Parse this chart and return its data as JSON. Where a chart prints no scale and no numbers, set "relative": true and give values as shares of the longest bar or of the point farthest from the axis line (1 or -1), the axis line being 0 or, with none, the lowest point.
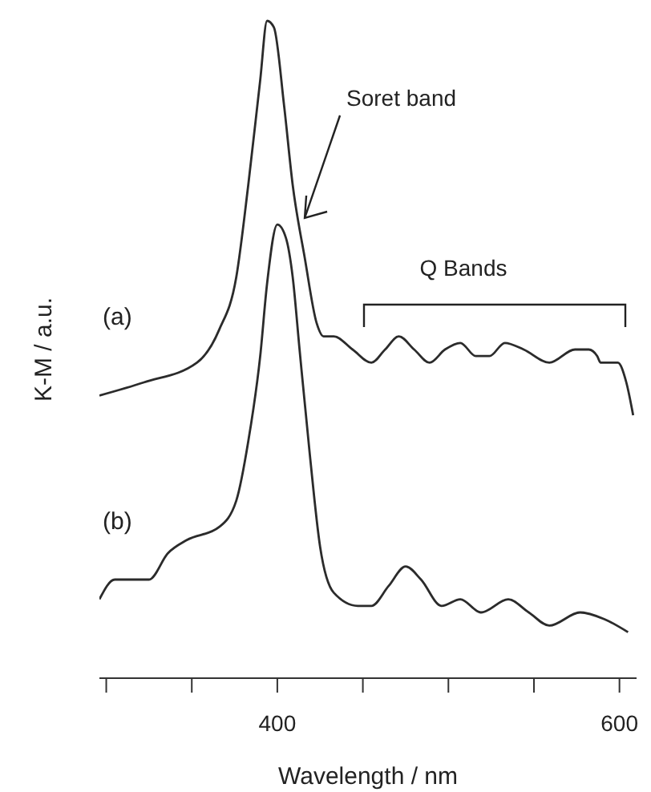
{
  "chart_data": {
    "type": "line",
    "relative": true,
    "xlabel": "Wavelength / nm",
    "ylabel": "K-M / a.u.",
    "xlim": [
      296,
      610
    ],
    "xticks": [
      {
        "value": 300,
        "label": null
      },
      {
        "value": 350,
        "label": null
      },
      400,
      {
        "value": 450,
        "label": null
      },
      {
        "value": 500,
        "label": null
      },
      {
        "value": 550,
        "label": null
      },
      600
    ],
    "marker": "none",
    "line_style": "solid",
    "annotations": [
      {
        "text": "Soret band",
        "x": 416,
        "y": 0.7
      },
      "Q Bands"
    ],
    "series": [
      {
        "name": "(a)",
        "color": "#2b2b2b",
        "x": [
          296,
          322,
          353,
          366,
          376,
          383,
          390,
          394,
          398,
          404,
          409,
          416,
          423,
          427,
          433,
          444,
          455,
          463,
          471,
          480,
          489,
          498,
          507,
          516,
          524,
          533,
          544,
          559,
          574,
          582,
          587,
          589,
          599,
          604,
          608
        ],
        "values": [
          0.43,
          0.45,
          0.48,
          0.53,
          0.61,
          0.75,
          0.91,
          1,
          0.99,
          0.87,
          0.75,
          0.64,
          0.54,
          0.52,
          0.52,
          0.5,
          0.48,
          0.5,
          0.52,
          0.5,
          0.48,
          0.5,
          0.51,
          0.49,
          0.49,
          0.51,
          0.5,
          0.48,
          0.5,
          0.5,
          0.49,
          0.48,
          0.48,
          0.45,
          0.4
        ]
      },
      {
        "name": "(b)",
        "color": "#2b2b2b",
        "x": [
          296,
          305,
          315,
          325,
          336,
          347,
          366,
          376,
          383,
          390,
          394,
          400,
          405,
          409,
          413,
          419,
          425,
          433,
          447,
          455,
          465,
          475,
          484,
          496,
          507,
          519,
          535,
          547,
          559,
          577,
          591,
          605
        ],
        "values": [
          0.12,
          0.15,
          0.15,
          0.15,
          0.19,
          0.21,
          0.23,
          0.27,
          0.36,
          0.49,
          0.6,
          0.69,
          0.67,
          0.61,
          0.5,
          0.34,
          0.2,
          0.13,
          0.11,
          0.11,
          0.14,
          0.17,
          0.15,
          0.11,
          0.12,
          0.1,
          0.12,
          0.1,
          0.08,
          0.1,
          0.09,
          0.07
        ]
      }
    ]
  }
}
